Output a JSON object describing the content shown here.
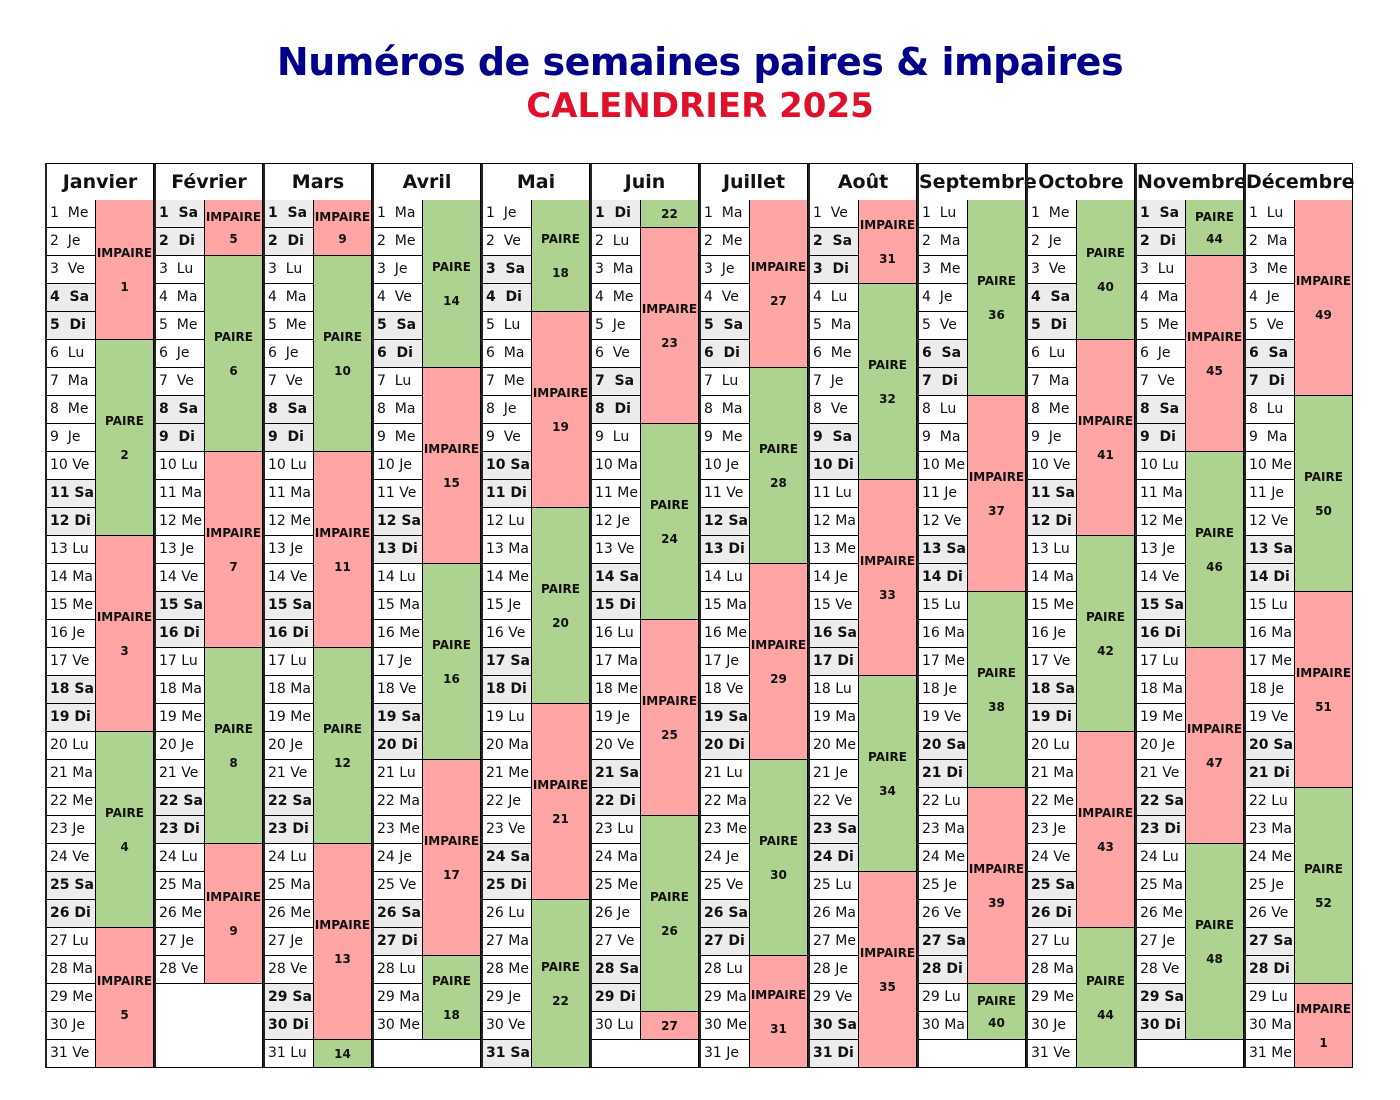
{
  "title": "Numéros de semaines paires & impaires",
  "subtitle": "CALENDRIER 2025",
  "labels": {
    "odd": "IMPAIRE",
    "even": "PAIRE"
  },
  "colors": {
    "odd": "#ffa5a5",
    "even": "#aed28f",
    "weekend": "#ececec",
    "title": "#00008b",
    "subtitle": "#e0102a"
  },
  "weekday_abbr": [
    "Lu",
    "Ma",
    "Me",
    "Je",
    "Ve",
    "Sa",
    "Di"
  ],
  "months": [
    {
      "name": "Janvier",
      "days": 31,
      "first_weekday": 2
    },
    {
      "name": "Février",
      "days": 28,
      "first_weekday": 5
    },
    {
      "name": "Mars",
      "days": 31,
      "first_weekday": 5
    },
    {
      "name": "Avril",
      "days": 30,
      "first_weekday": 1
    },
    {
      "name": "Mai",
      "days": 31,
      "first_weekday": 3
    },
    {
      "name": "Juin",
      "days": 30,
      "first_weekday": 6
    },
    {
      "name": "Juillet",
      "days": 31,
      "first_weekday": 1
    },
    {
      "name": "Août",
      "days": 31,
      "first_weekday": 4
    },
    {
      "name": "Septembre",
      "days": 30,
      "first_weekday": 0
    },
    {
      "name": "Octobre",
      "days": 31,
      "first_weekday": 2
    },
    {
      "name": "Novembre",
      "days": 30,
      "first_weekday": 5
    },
    {
      "name": "Décembre",
      "days": 31,
      "first_weekday": 0
    }
  ],
  "first_week_number": 1
}
